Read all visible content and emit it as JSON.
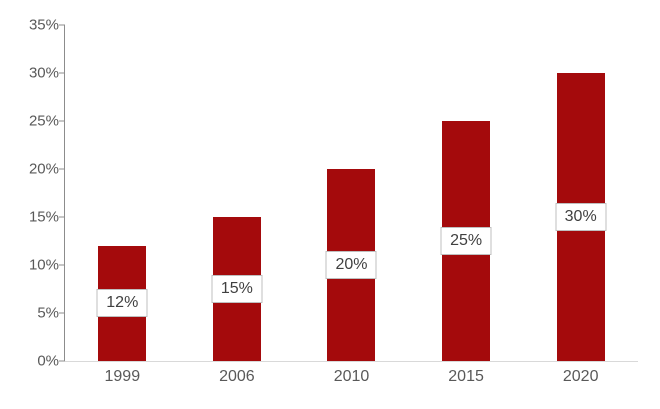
{
  "chart_data": {
    "type": "bar",
    "categories": [
      "1999",
      "2006",
      "2010",
      "2015",
      "2020"
    ],
    "values": [
      12,
      15,
      20,
      25,
      30
    ],
    "data_labels": [
      "12%",
      "15%",
      "20%",
      "25%",
      "30%"
    ],
    "title": "",
    "xlabel": "",
    "ylabel": "",
    "ylim": [
      0,
      35
    ],
    "ytick_step": 5,
    "ytick_labels": [
      "0%",
      "5%",
      "10%",
      "15%",
      "20%",
      "25%",
      "30%",
      "35%"
    ],
    "grid": "off",
    "legend": "none",
    "colors": {
      "bar": "#a40a0c",
      "data_label_text": "#404040",
      "data_label_box_bg": "#ffffff",
      "data_label_box_border": "#bfbfbf",
      "axis_text": "#595959",
      "value_axis_line": "#8c8c8c",
      "category_axis_line": "#d9d9d9"
    }
  }
}
